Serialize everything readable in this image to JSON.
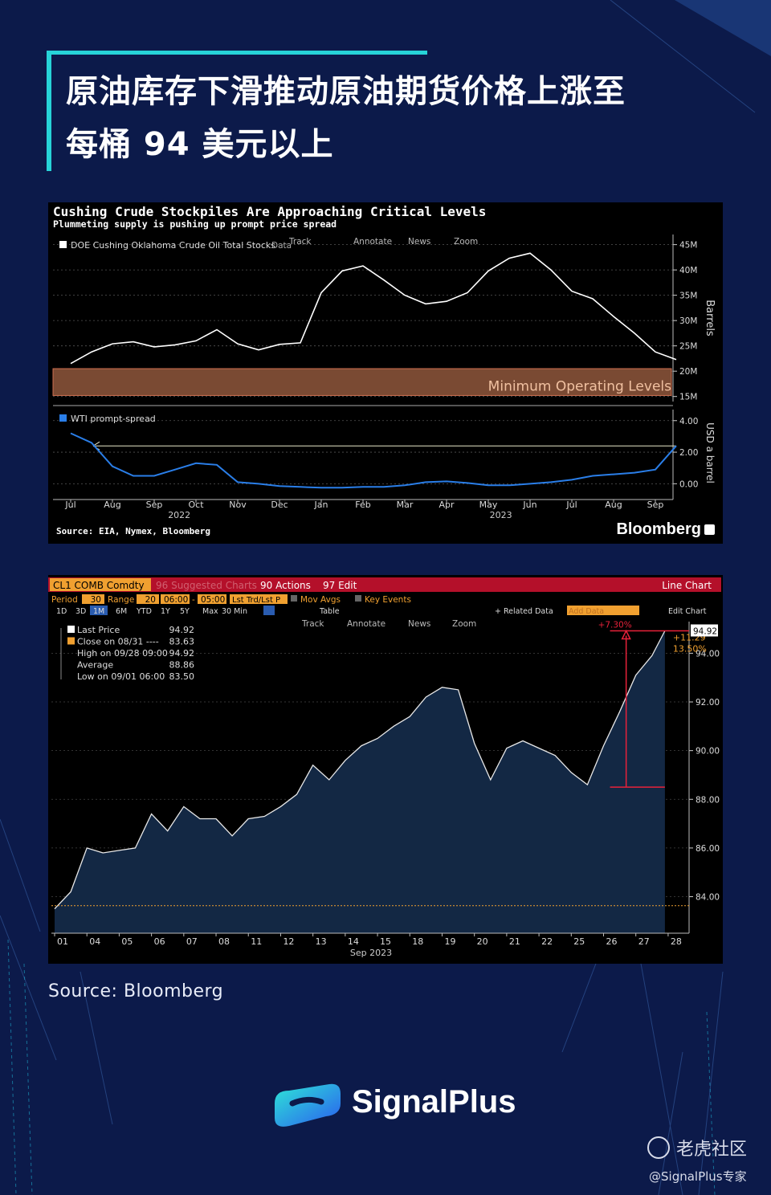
{
  "headline": {
    "line1": "原油库存下滑推动原油期货价格上涨至",
    "line2": "每桶 94 美元以上"
  },
  "footer": {
    "source": "Source: Bloomberg",
    "brand": "SignalPlus",
    "watermark_primary": "老虎社区",
    "watermark_secondary": "@SignalPlus专家"
  },
  "chart_data": [
    {
      "type": "line",
      "title": "Cushing Crude Stockpiles Are Approaching Critical Levels",
      "subtitle": "Plummeting supply is pushing up prompt price spread",
      "source": "Source: EIA, Nymex, Bloomberg",
      "brand": "Bloomberg",
      "toolbar": [
        "Track",
        "Annotate",
        "News",
        "Zoom"
      ],
      "x_ticks": [
        "Jul",
        "Aug",
        "Sep",
        "Oct",
        "Nov",
        "Dec",
        "Jan",
        "Feb",
        "Mar",
        "Apr",
        "May",
        "Jun",
        "Jul",
        "Aug",
        "Sep"
      ],
      "x_years": [
        "2022",
        "2023"
      ],
      "panels": [
        {
          "series_name": "DOE Cushing Oklahoma Crude Oil Total Stocks",
          "legend_extra": "Data",
          "ylabel": "Barrels",
          "ylim": [
            14,
            47
          ],
          "y_ticks": [
            15,
            20,
            25,
            30,
            35,
            40,
            45
          ],
          "y_tick_labels": [
            "15M",
            "20M",
            "25M",
            "30M",
            "35M",
            "40M",
            "45M"
          ],
          "annotation": "Minimum Operating Levels",
          "annotation_range": [
            20.5,
            15.2
          ],
          "x": [
            0,
            0.5,
            1,
            1.5,
            2,
            2.5,
            3,
            3.5,
            4,
            4.5,
            5,
            5.5,
            6,
            6.5,
            7,
            7.5,
            8,
            8.5,
            9,
            9.5,
            10,
            10.5,
            11,
            11.5,
            12,
            12.5,
            13,
            13.5,
            14,
            14.5
          ],
          "values": [
            21.5,
            23.8,
            25.4,
            25.8,
            24.8,
            25.2,
            26,
            28.2,
            25.4,
            24.2,
            25.3,
            25.6,
            35.5,
            39.8,
            40.8,
            38,
            35,
            33.3,
            33.8,
            35.5,
            39.8,
            42.3,
            43.3,
            40,
            35.8,
            34.3,
            30.8,
            27.5,
            23.8,
            22.3
          ]
        },
        {
          "series_name": "WTI prompt-spread",
          "ylabel": "USD a barrel",
          "ylim": [
            -1,
            4.7
          ],
          "y_ticks": [
            0,
            2,
            4
          ],
          "y_tick_labels": [
            "0.00",
            "2.00",
            "4.00"
          ],
          "x": [
            0,
            0.5,
            1,
            1.5,
            2,
            2.5,
            3,
            3.5,
            4,
            4.5,
            5,
            5.5,
            6,
            6.5,
            7,
            7.5,
            8,
            8.5,
            9,
            9.5,
            10,
            10.5,
            11,
            11.5,
            12,
            12.5,
            13,
            13.5,
            14,
            14.5
          ],
          "values": [
            3.2,
            2.6,
            1.1,
            0.5,
            0.5,
            0.9,
            1.3,
            1.2,
            0.1,
            0,
            -0.15,
            -0.2,
            -0.25,
            -0.25,
            -0.2,
            -0.2,
            -0.1,
            0.1,
            0.15,
            0.05,
            -0.1,
            -0.1,
            0,
            0.1,
            0.25,
            0.5,
            0.6,
            0.7,
            0.9,
            2.4
          ],
          "annotation_arrow_level": 2.4
        }
      ]
    },
    {
      "type": "area",
      "ticker": "CL1 COMB Comdty",
      "header_items": [
        "96 Suggested Charts",
        "90 Actions",
        "97 Edit"
      ],
      "chart_mode": "Line Chart",
      "controls": {
        "period_label": "Period",
        "period_value": "30",
        "range_label": "Range",
        "range_value": "20",
        "range_from": "06:00",
        "range_to": "05:00",
        "study": "Lst Trd/Lst P",
        "mov_avgs": "Mov Avgs",
        "key_events": "Key Events",
        "timeframes": [
          "1D",
          "3D",
          "1M",
          "6M",
          "YTD",
          "1Y",
          "5Y",
          "Max",
          "30 Min"
        ],
        "table": "Table",
        "related_data": "+ Related Data",
        "add_data": "Add Data",
        "edit_chart": "Edit Chart"
      },
      "toolbar": [
        "Track",
        "Annotate",
        "News",
        "Zoom"
      ],
      "legend": [
        {
          "label": "Last Price",
          "value": "94.92"
        },
        {
          "label": "Close on 08/31 ----",
          "value": "83.63"
        },
        {
          "label": "High on 09/28 09:00",
          "value": "94.92"
        },
        {
          "label": "Average",
          "value": "88.86"
        },
        {
          "label": "Low on 09/01 06:00",
          "value": "83.50"
        }
      ],
      "ylim": [
        82.5,
        95.3
      ],
      "y_ticks": [
        84,
        86,
        88,
        90,
        92,
        94
      ],
      "y_tick_labels": [
        "84.00",
        "86.00",
        "88.00",
        "90.00",
        "92.00",
        "94.00"
      ],
      "last_price_label": "94.92",
      "reference_close": 83.63,
      "annotation_pct_low": "+7.30%",
      "annotation_change": "+11.29",
      "annotation_pct": "13.50%",
      "annotation_low": 88.5,
      "annotation_high": 94.92,
      "x_ticks": [
        "01",
        "04",
        "05",
        "06",
        "07",
        "08",
        "11",
        "12",
        "13",
        "14",
        "15",
        "18",
        "19",
        "20",
        "21",
        "22",
        "25",
        "26",
        "27",
        "28"
      ],
      "x_label": "Sep 2023",
      "x": [
        0,
        0.5,
        1,
        1.5,
        2,
        2.5,
        3,
        3.5,
        4,
        4.5,
        5,
        5.5,
        6,
        6.5,
        7,
        7.5,
        8,
        8.5,
        9,
        9.5,
        10,
        10.5,
        11,
        11.5,
        12,
        12.5,
        13,
        13.5,
        14,
        14.5,
        15,
        15.5,
        16,
        16.5,
        17,
        17.5,
        18,
        18.5,
        18.9
      ],
      "values": [
        83.5,
        84.2,
        86,
        85.8,
        85.9,
        86,
        87.4,
        86.7,
        87.7,
        87.2,
        87.2,
        86.5,
        87.2,
        87.3,
        87.7,
        88.2,
        89.4,
        88.8,
        89.6,
        90.2,
        90.5,
        91,
        91.4,
        92.2,
        92.6,
        92.5,
        90.3,
        88.8,
        90.1,
        90.4,
        90.1,
        89.8,
        89.1,
        88.6,
        90.2,
        91.6,
        93.1,
        93.9,
        94.92
      ]
    }
  ],
  "colors": {
    "background": "#0c1a4a",
    "accent": "#27d3d8",
    "spread_line": "#2a7ee8",
    "min_band": "#7a4a33",
    "header_red": "#b4102a",
    "annot_red": "#e8213a",
    "annot_orange": "#f0a030",
    "area_fill": "#132844"
  }
}
